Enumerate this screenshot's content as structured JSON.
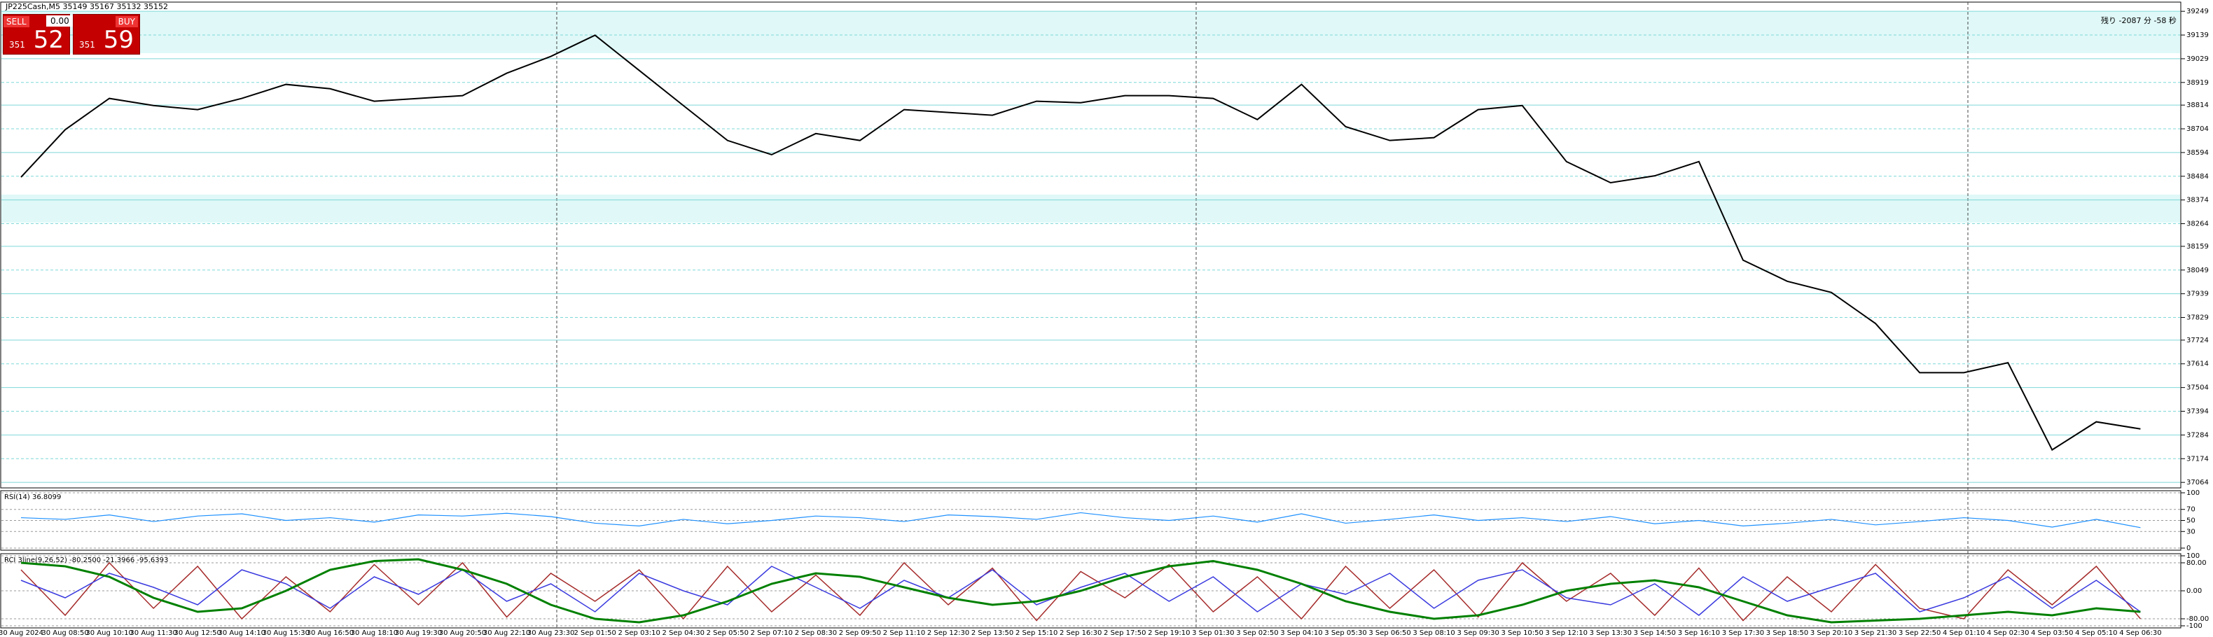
{
  "header": {
    "symbol": "JP225Cash,M5  35149 35167 35132 35152",
    "countdown": "残り -2087 分 -58 秒"
  },
  "trade_panel": {
    "sell": "SELL",
    "buy": "BUY",
    "lot": "0.00",
    "sell_prefix": "351",
    "sell_price": "52",
    "buy_prefix": "351",
    "buy_price": "59"
  },
  "chart_data": [
    {
      "type": "line",
      "color": "#000000",
      "categories": [
        "30 Aug 2024",
        "30 Aug 08:50",
        "30 Aug 10:10",
        "30 Aug 11:30",
        "30 Aug 12:50",
        "30 Aug 14:10",
        "30 Aug 15:30",
        "30 Aug 16:50",
        "30 Aug 18:10",
        "30 Aug 19:30",
        "30 Aug 20:50",
        "30 Aug 22:10",
        "30 Aug 23:30",
        "2 Sep 01:50",
        "2 Sep 03:10",
        "2 Sep 04:30",
        "2 Sep 05:50",
        "2 Sep 07:10",
        "2 Sep 08:30",
        "2 Sep 09:50",
        "2 Sep 11:10",
        "2 Sep 12:30",
        "2 Sep 13:50",
        "2 Sep 15:10",
        "2 Sep 16:30",
        "2 Sep 17:50",
        "2 Sep 19:10",
        "3 Sep 01:30",
        "3 Sep 02:50",
        "3 Sep 04:10",
        "3 Sep 05:30",
        "3 Sep 06:50",
        "3 Sep 08:10",
        "3 Sep 09:30",
        "3 Sep 10:50",
        "3 Sep 12:10",
        "3 Sep 13:30",
        "3 Sep 14:50",
        "3 Sep 16:10",
        "3 Sep 17:30",
        "3 Sep 18:50",
        "3 Sep 20:10",
        "3 Sep 21:30",
        "3 Sep 22:50",
        "4 Sep 01:10",
        "4 Sep 02:30",
        "4 Sep 03:50",
        "4 Sep 05:10",
        "4 Sep 06:30"
      ],
      "values": [
        38480,
        38700,
        38845,
        38812,
        38793,
        38845,
        38910,
        38890,
        38832,
        38845,
        38858,
        38962,
        39040,
        39138,
        38975,
        38812,
        38650,
        38584,
        38682,
        38650,
        38793,
        38780,
        38767,
        38832,
        38825,
        38858,
        38858,
        38845,
        38747,
        38910,
        38714,
        38650,
        38663,
        38793,
        38812,
        38552,
        38454,
        38486,
        38552,
        38095,
        37997,
        37945,
        37801,
        37573,
        37573,
        37619,
        37215,
        37345,
        37312
      ],
      "ylim": [
        37045,
        39282
      ],
      "yticks": [
        39249,
        39139,
        39029,
        38919,
        38814,
        38704,
        38594,
        38484,
        38374,
        38264,
        38159,
        38049,
        37939,
        37829,
        37724,
        37614,
        37504,
        37394,
        37284,
        37174,
        37064
      ]
    },
    {
      "type": "line",
      "title": "RSI(14) 36.8099",
      "color": "#1e90ff",
      "values": [
        55,
        52,
        60,
        48,
        58,
        62,
        50,
        55,
        47,
        60,
        58,
        63,
        57,
        45,
        40,
        52,
        44,
        50,
        58,
        55,
        48,
        60,
        57,
        52,
        64,
        55,
        50,
        58,
        47,
        62,
        45,
        52,
        60,
        50,
        55,
        48,
        57,
        44,
        50,
        40,
        45,
        52,
        42,
        48,
        55,
        50,
        38,
        52,
        37
      ],
      "ylim": [
        0,
        100
      ],
      "yticks": [
        100,
        70,
        50,
        30,
        0
      ]
    },
    {
      "type": "line",
      "title": "RCI 3line(9,26,52) -80.2500 -21.3966 -95.6393",
      "series": [
        {
          "color": "#a52a2a",
          "values": [
            60,
            -70,
            80,
            -50,
            70,
            -80,
            40,
            -60,
            75,
            -40,
            80,
            -75,
            50,
            -30,
            60,
            -80,
            70,
            -60,
            45,
            -70,
            80,
            -40,
            65,
            -85,
            55,
            -20,
            75,
            -60,
            40,
            -80,
            70,
            -50,
            60,
            -75,
            80,
            -30,
            50,
            -70,
            65,
            -85,
            40,
            -60,
            75,
            -50,
            -80,
            60,
            -40,
            70,
            -80
          ]
        },
        {
          "color": "#3a3adf",
          "values": [
            30,
            -20,
            50,
            10,
            -40,
            60,
            20,
            -50,
            40,
            -10,
            60,
            -30,
            20,
            -60,
            50,
            0,
            -40,
            70,
            10,
            -50,
            30,
            -20,
            60,
            -40,
            10,
            50,
            -30,
            40,
            -60,
            20,
            -10,
            50,
            -50,
            30,
            60,
            -20,
            -40,
            20,
            -70,
            40,
            -30,
            10,
            50,
            -60,
            -20,
            40,
            -50,
            30,
            -60
          ]
        },
        {
          "color": "#008000",
          "values": [
            80,
            70,
            40,
            -20,
            -60,
            -50,
            0,
            60,
            85,
            90,
            60,
            20,
            -40,
            -80,
            -90,
            -70,
            -30,
            20,
            50,
            40,
            10,
            -20,
            -40,
            -30,
            0,
            40,
            70,
            85,
            60,
            20,
            -30,
            -60,
            -80,
            -70,
            -40,
            0,
            20,
            30,
            10,
            -30,
            -70,
            -90,
            -85,
            -80,
            -70,
            -60,
            -70,
            -50,
            -60
          ]
        }
      ],
      "ylim": [
        -100,
        100
      ],
      "yticks": [
        100,
        {
          "value": 80,
          "label": "80.00"
        },
        {
          "value": 0,
          "label": "0.00"
        },
        {
          "value": -80,
          "label": "-80.00"
        },
        -100
      ]
    }
  ]
}
